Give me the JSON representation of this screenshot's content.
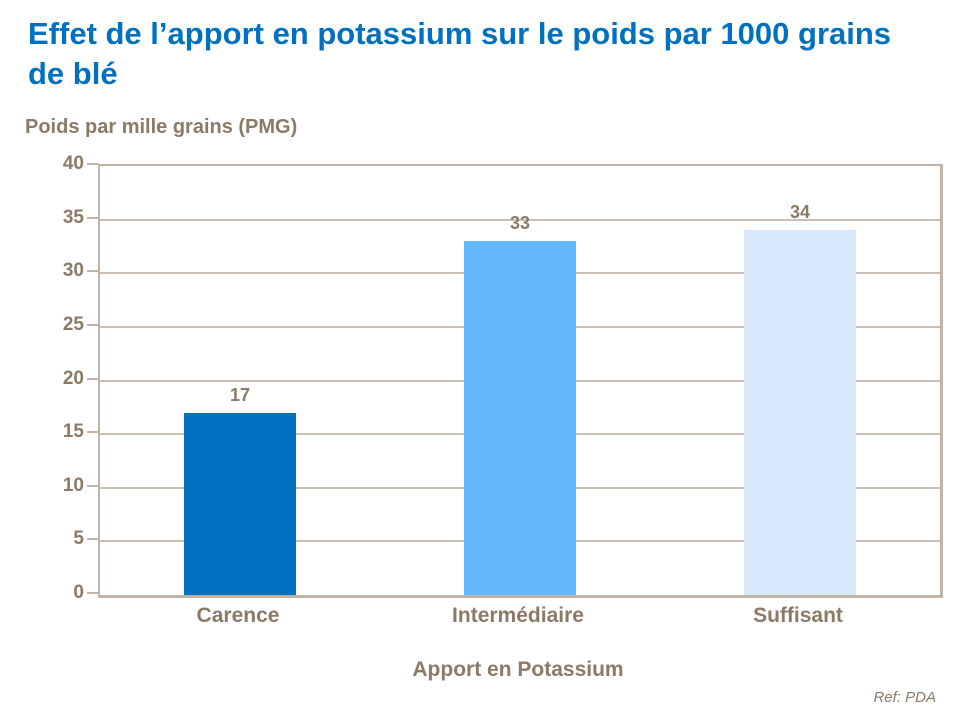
{
  "colors": {
    "background": "#FFFFFF",
    "title_text": "#0070C0",
    "axis_text": "#8A7A66",
    "gridline": "#C9BFB2",
    "axis_line": "#BFB4A5"
  },
  "chart_data": {
    "type": "bar",
    "title": "Effet de l’apport en potassium sur le poids par 1000 grains de blé",
    "title_lines": [
      "Effet de l’apport en potassium sur le poids par 1000 grains",
      "de blé"
    ],
    "ylabel": "Poids par mille grains (PMG)",
    "xlabel": "Apport en Potassium",
    "categories": [
      "Carence",
      "Intermédiaire",
      "Suffisant"
    ],
    "values": [
      17,
      33,
      34
    ],
    "data_labels": [
      "17",
      "33",
      "34"
    ],
    "bar_colors": [
      "#0070C0",
      "#63B8FC",
      "#D9E9FB"
    ],
    "ylim": [
      0,
      40
    ],
    "ytick_step": 5,
    "yticks": [
      0,
      5,
      10,
      15,
      20,
      25,
      30,
      35,
      40
    ],
    "grid": "horizontal",
    "legend": "none"
  },
  "footer": {
    "ref": "Ref: PDA"
  }
}
